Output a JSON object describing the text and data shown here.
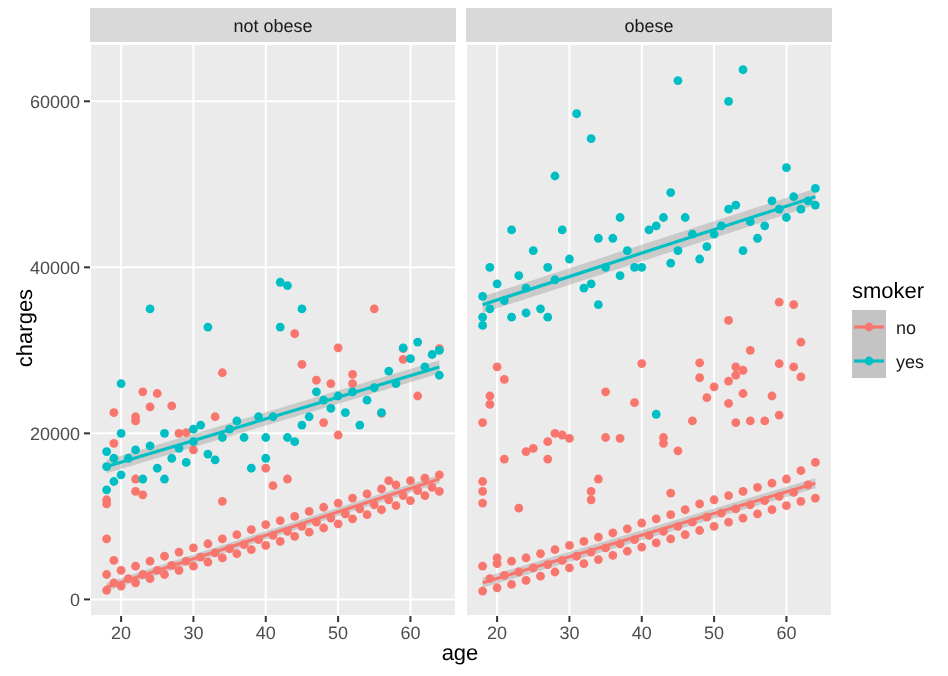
{
  "chart_data": [
    {
      "type": "scatter",
      "title": "not obese",
      "xlabel": "age",
      "ylabel": "charges",
      "xlim": [
        15.7,
        66.3
      ],
      "xticks": [
        20,
        30,
        40,
        50,
        60
      ],
      "ylim": [
        -2000,
        66900
      ],
      "yticks": [
        0,
        20000,
        40000,
        60000
      ],
      "grid": true,
      "series": [
        {
          "color": "#f8766d",
          "marker": "circle",
          "x": [
            18,
            20,
            22,
            24,
            26,
            28,
            30,
            32,
            34,
            36,
            38,
            40,
            42,
            44,
            46,
            48,
            50,
            52,
            54,
            56,
            58,
            60,
            62,
            64,
            18,
            20,
            22,
            24,
            26,
            28,
            30,
            32,
            34,
            36,
            38,
            40,
            42,
            44,
            46,
            48,
            50,
            52,
            54,
            56,
            58,
            60,
            62,
            64,
            19,
            21,
            23,
            25,
            27,
            29,
            31,
            33,
            35,
            37,
            39,
            41,
            43,
            45,
            47,
            49,
            51,
            53,
            55,
            57,
            59,
            61,
            63,
            18,
            18,
            18,
            19,
            19,
            19,
            22,
            22,
            22,
            22,
            23,
            23,
            24,
            25,
            27,
            28,
            29,
            30,
            33,
            34,
            34,
            40,
            41,
            43,
            44,
            45,
            47,
            48,
            49,
            50,
            50,
            52,
            52,
            55,
            56,
            57,
            59,
            59,
            61,
            64
          ],
          "values": [
            1100,
            1600,
            2000,
            2500,
            3000,
            3500,
            4000,
            4500,
            5000,
            5500,
            6000,
            6500,
            7000,
            7600,
            8100,
            8600,
            9100,
            9700,
            10200,
            10800,
            11300,
            11900,
            12500,
            13000,
            3000,
            3500,
            4000,
            4600,
            5200,
            5700,
            6200,
            6700,
            7300,
            7800,
            8400,
            9000,
            9500,
            10000,
            10600,
            11100,
            11600,
            12200,
            12700,
            13300,
            13800,
            14300,
            14600,
            15000,
            2000,
            2500,
            3000,
            3500,
            4100,
            4600,
            5100,
            5600,
            6100,
            6600,
            7200,
            7700,
            8200,
            8800,
            9300,
            9800,
            10300,
            10900,
            11400,
            12000,
            12500,
            13100,
            13500,
            12000,
            11500,
            7300,
            4700,
            22500,
            18800,
            22000,
            21500,
            14500,
            13000,
            12600,
            25000,
            23200,
            24800,
            23300,
            20000,
            20100,
            18000,
            22000,
            27300,
            11800,
            15800,
            13700,
            14500,
            32000,
            28300,
            26400,
            21300,
            26000,
            30300,
            19800,
            27100,
            26000,
            35000,
            22400,
            14300,
            28900,
            30200,
            24500,
            30200
          ]
        },
        {
          "color": "#00bfc4",
          "marker": "circle",
          "x": [
            18,
            18,
            18,
            19,
            19,
            20,
            20,
            20,
            21,
            22,
            23,
            24,
            24,
            25,
            26,
            26,
            27,
            28,
            29,
            30,
            30,
            31,
            32,
            32,
            33,
            34,
            35,
            36,
            37,
            38,
            39,
            40,
            40,
            41,
            42,
            42,
            43,
            43,
            44,
            45,
            45,
            46,
            47,
            48,
            49,
            50,
            51,
            52,
            53,
            54,
            55,
            56,
            57,
            58,
            59,
            60,
            61,
            62,
            63,
            64,
            64
          ],
          "values": [
            13200,
            16000,
            17800,
            14200,
            17000,
            26000,
            15000,
            20000,
            17000,
            18000,
            14500,
            35000,
            18500,
            15800,
            20000,
            14500,
            17000,
            18200,
            16500,
            20500,
            19000,
            21000,
            32800,
            17500,
            16800,
            19500,
            20500,
            21500,
            19500,
            15800,
            22000,
            17000,
            19500,
            22000,
            38200,
            32800,
            37800,
            19500,
            19000,
            35000,
            21000,
            22000,
            25000,
            24000,
            23000,
            24500,
            22500,
            25000,
            21000,
            24000,
            25500,
            22500,
            27500,
            26000,
            30300,
            29000,
            31000,
            28000,
            29500,
            27000,
            30000
          ]
        },
        {
          "type": "line",
          "marker": "none",
          "color": "#f8766d",
          "x": [
            18,
            64
          ],
          "values": [
            1500,
            14500
          ],
          "lower": [
            1000,
            14000
          ],
          "upper": [
            2000,
            15000
          ]
        },
        {
          "type": "line",
          "marker": "none",
          "color": "#00bfc4",
          "x": [
            18,
            64
          ],
          "values": [
            16000,
            28000
          ],
          "lower": [
            15200,
            27200
          ],
          "upper": [
            16800,
            28800
          ]
        }
      ]
    },
    {
      "type": "scatter",
      "title": "obese",
      "xlim": [
        15.7,
        66.3
      ],
      "xticks": [
        20,
        30,
        40,
        50,
        60
      ],
      "ylim": [
        -2000,
        66900
      ],
      "yticks": [
        0,
        20000,
        40000,
        60000
      ],
      "grid": true,
      "tick_labels": "x",
      "legend": "right",
      "legend_title": "smoker",
      "series": [
        {
          "name": "no",
          "color": "#f8766d",
          "marker": "circle",
          "x": [
            18,
            20,
            22,
            24,
            26,
            28,
            30,
            32,
            34,
            36,
            38,
            40,
            42,
            44,
            46,
            48,
            50,
            52,
            54,
            56,
            58,
            60,
            62,
            64,
            18,
            20,
            22,
            24,
            26,
            28,
            30,
            32,
            34,
            36,
            38,
            40,
            42,
            44,
            46,
            48,
            50,
            52,
            54,
            56,
            58,
            60,
            62,
            64,
            19,
            21,
            23,
            25,
            27,
            29,
            31,
            33,
            35,
            37,
            39,
            41,
            43,
            45,
            47,
            49,
            51,
            53,
            55,
            57,
            59,
            61,
            63,
            18,
            18,
            18,
            18,
            19,
            19,
            20,
            20,
            21,
            21,
            23,
            24,
            25,
            27,
            27,
            28,
            29,
            30,
            33,
            33,
            34,
            35,
            35,
            37,
            39,
            40,
            43,
            43,
            44,
            45,
            47,
            48,
            48,
            49,
            50,
            52,
            52,
            52,
            53,
            53,
            53,
            54,
            54,
            55,
            55,
            57,
            58,
            59,
            59,
            59,
            61,
            61,
            62,
            62
          ],
          "values": [
            1000,
            1400,
            1800,
            2300,
            2800,
            3300,
            3800,
            4300,
            4800,
            5300,
            5800,
            6300,
            6800,
            7300,
            7800,
            8300,
            8800,
            9300,
            9800,
            10300,
            10800,
            11300,
            11800,
            12200,
            4000,
            4300,
            4600,
            5000,
            5500,
            6000,
            6500,
            7000,
            7500,
            8000,
            8500,
            9200,
            9700,
            10200,
            10800,
            11500,
            12000,
            12500,
            13000,
            13500,
            14000,
            14500,
            15500,
            16500,
            2500,
            2900,
            3300,
            3800,
            4200,
            4700,
            5200,
            5700,
            6200,
            6700,
            7200,
            7700,
            8200,
            8800,
            9300,
            9900,
            10400,
            10900,
            11400,
            11900,
            12400,
            12900,
            13800,
            21300,
            14200,
            13000,
            11600,
            24500,
            23500,
            28000,
            5000,
            26500,
            16900,
            11000,
            17800,
            18200,
            16900,
            19000,
            20000,
            19800,
            19400,
            12000,
            13000,
            14500,
            25000,
            19500,
            19400,
            23700,
            28400,
            19500,
            18800,
            12800,
            17900,
            21500,
            26700,
            28500,
            24300,
            25600,
            33600,
            26300,
            23600,
            28000,
            27000,
            21300,
            24800,
            27600,
            30000,
            21500,
            21500,
            24500,
            35800,
            28400,
            22200,
            35500,
            28000,
            31000,
            26800
          ]
        },
        {
          "name": "yes",
          "color": "#00bfc4",
          "marker": "circle",
          "x": [
            18,
            18,
            18,
            19,
            19,
            20,
            21,
            22,
            22,
            23,
            24,
            24,
            25,
            26,
            27,
            27,
            28,
            28,
            29,
            30,
            31,
            32,
            33,
            33,
            34,
            34,
            35,
            36,
            37,
            37,
            38,
            39,
            40,
            41,
            42,
            42,
            43,
            44,
            44,
            45,
            45,
            46,
            47,
            48,
            49,
            50,
            51,
            52,
            52,
            53,
            54,
            54,
            55,
            56,
            57,
            58,
            59,
            60,
            60,
            61,
            62,
            63,
            64,
            64
          ],
          "values": [
            34000,
            36500,
            33000,
            40000,
            35000,
            38000,
            36000,
            44500,
            34000,
            39000,
            37500,
            34500,
            42000,
            35000,
            40000,
            34000,
            51000,
            38500,
            44500,
            41000,
            58500,
            37500,
            55500,
            38000,
            43500,
            35500,
            40000,
            43500,
            46000,
            39000,
            42000,
            40000,
            40000,
            44500,
            45000,
            22300,
            46000,
            49000,
            40500,
            62500,
            42000,
            46000,
            44000,
            41000,
            42500,
            44000,
            45000,
            60000,
            47000,
            47500,
            63800,
            42000,
            45500,
            43500,
            45000,
            48000,
            47000,
            52000,
            46000,
            48500,
            47000,
            48000,
            49500,
            47500
          ]
        },
        {
          "type": "line",
          "marker": "none",
          "color": "#f8766d",
          "x": [
            18,
            64
          ],
          "values": [
            2000,
            14000
          ],
          "lower": [
            1400,
            13400
          ],
          "upper": [
            2600,
            14600
          ]
        },
        {
          "type": "line",
          "marker": "none",
          "color": "#00bfc4",
          "x": [
            18,
            64
          ],
          "values": [
            35500,
            48500
          ],
          "lower": [
            34500,
            47500
          ],
          "upper": [
            36500,
            49500
          ]
        }
      ]
    }
  ]
}
